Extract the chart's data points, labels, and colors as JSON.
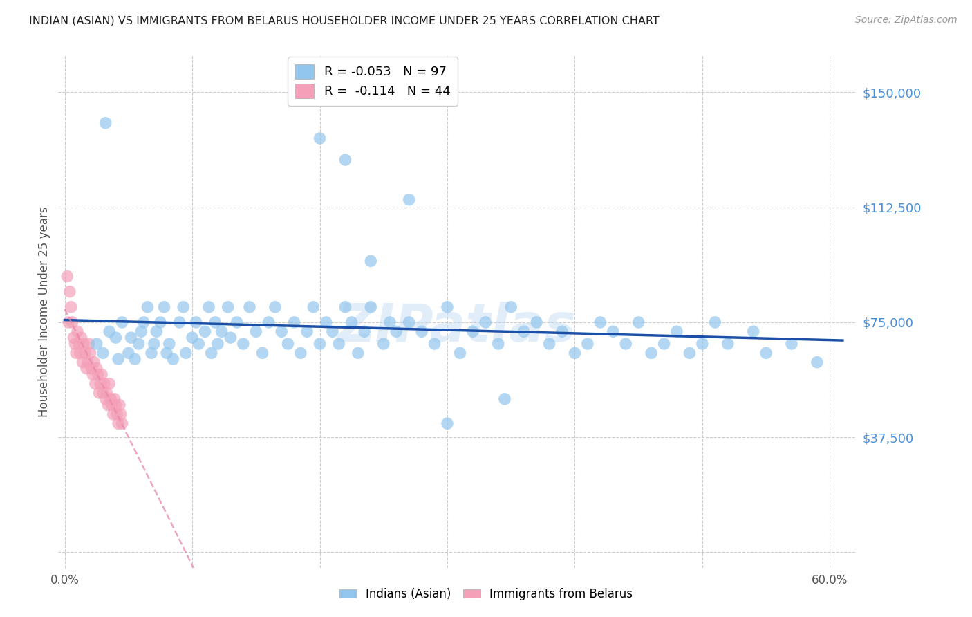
{
  "title": "INDIAN (ASIAN) VS IMMIGRANTS FROM BELARUS HOUSEHOLDER INCOME UNDER 25 YEARS CORRELATION CHART",
  "source": "Source: ZipAtlas.com",
  "ylabel": "Householder Income Under 25 years",
  "yticks": [
    0,
    37500,
    75000,
    112500,
    150000
  ],
  "ytick_labels": [
    "",
    "$37,500",
    "$75,000",
    "$112,500",
    "$150,000"
  ],
  "ylim": [
    -5000,
    162000
  ],
  "xlim": [
    -0.5,
    62
  ],
  "xlabel_vals": [
    0.0,
    10.0,
    20.0,
    30.0,
    40.0,
    50.0,
    60.0
  ],
  "xlabel_ticks": [
    "0.0%",
    "",
    "",
    "",
    "",
    "",
    "60.0%"
  ],
  "blue_color": "#93C6ED",
  "pink_color": "#F4A0B8",
  "line_blue": "#1B4FA8",
  "line_pink": "#E888AA",
  "ytick_color": "#4A90D9",
  "grid_color": "#CCCCCC",
  "watermark": "ZIPatlas",
  "blue_R": -0.053,
  "blue_N": 97,
  "pink_R": -0.114,
  "pink_N": 44,
  "legend_label1": "R = -0.053   N = 97",
  "legend_label2": "R =  -0.114   N = 44",
  "legend_label1_blue": "Indians (Asian)",
  "legend_label2_pink": "Immigrants from Belarus",
  "blue_scatter_x": [
    2.5,
    3.0,
    3.5,
    4.0,
    4.2,
    4.5,
    5.0,
    5.2,
    5.5,
    5.8,
    6.0,
    6.2,
    6.5,
    6.8,
    7.0,
    7.2,
    7.5,
    7.8,
    8.0,
    8.2,
    8.5,
    9.0,
    9.3,
    9.5,
    10.0,
    10.3,
    10.5,
    11.0,
    11.3,
    11.5,
    11.8,
    12.0,
    12.3,
    12.8,
    13.0,
    13.5,
    14.0,
    14.5,
    15.0,
    15.5,
    16.0,
    16.5,
    17.0,
    17.5,
    18.0,
    18.5,
    19.0,
    19.5,
    20.0,
    20.5,
    21.0,
    21.5,
    22.0,
    22.5,
    23.0,
    23.5,
    24.0,
    25.0,
    25.5,
    26.0,
    27.0,
    28.0,
    29.0,
    30.0,
    31.0,
    32.0,
    33.0,
    34.0,
    35.0,
    36.0,
    37.0,
    38.0,
    39.0,
    40.0,
    41.0,
    42.0,
    43.0,
    44.0,
    45.0,
    46.0,
    47.0,
    48.0,
    49.0,
    50.0,
    51.0,
    52.0,
    54.0,
    55.0,
    57.0,
    59.0,
    20.0,
    22.0,
    24.0,
    27.0,
    30.0,
    34.5,
    3.2
  ],
  "blue_scatter_y": [
    68000,
    65000,
    72000,
    70000,
    63000,
    75000,
    65000,
    70000,
    63000,
    68000,
    72000,
    75000,
    80000,
    65000,
    68000,
    72000,
    75000,
    80000,
    65000,
    68000,
    63000,
    75000,
    80000,
    65000,
    70000,
    75000,
    68000,
    72000,
    80000,
    65000,
    75000,
    68000,
    72000,
    80000,
    70000,
    75000,
    68000,
    80000,
    72000,
    65000,
    75000,
    80000,
    72000,
    68000,
    75000,
    65000,
    72000,
    80000,
    68000,
    75000,
    72000,
    68000,
    80000,
    75000,
    65000,
    72000,
    80000,
    68000,
    75000,
    72000,
    75000,
    72000,
    68000,
    80000,
    65000,
    72000,
    75000,
    68000,
    80000,
    72000,
    75000,
    68000,
    72000,
    65000,
    68000,
    75000,
    72000,
    68000,
    75000,
    65000,
    68000,
    72000,
    65000,
    68000,
    75000,
    68000,
    72000,
    65000,
    68000,
    62000,
    135000,
    128000,
    95000,
    115000,
    42000,
    50000,
    140000
  ],
  "pink_scatter_x": [
    0.2,
    0.3,
    0.4,
    0.5,
    0.6,
    0.7,
    0.8,
    0.9,
    1.0,
    1.1,
    1.2,
    1.3,
    1.4,
    1.5,
    1.6,
    1.7,
    1.8,
    1.9,
    2.0,
    2.1,
    2.2,
    2.3,
    2.4,
    2.5,
    2.6,
    2.7,
    2.8,
    2.9,
    3.0,
    3.1,
    3.2,
    3.3,
    3.4,
    3.5,
    3.6,
    3.7,
    3.8,
    3.9,
    4.0,
    4.1,
    4.2,
    4.3,
    4.4,
    4.5
  ],
  "pink_scatter_y": [
    90000,
    75000,
    85000,
    80000,
    75000,
    70000,
    68000,
    65000,
    72000,
    68000,
    65000,
    70000,
    62000,
    68000,
    65000,
    60000,
    62000,
    68000,
    65000,
    60000,
    58000,
    62000,
    55000,
    60000,
    58000,
    52000,
    55000,
    58000,
    52000,
    55000,
    50000,
    52000,
    48000,
    55000,
    50000,
    48000,
    45000,
    50000,
    48000,
    45000,
    42000,
    48000,
    45000,
    42000
  ]
}
